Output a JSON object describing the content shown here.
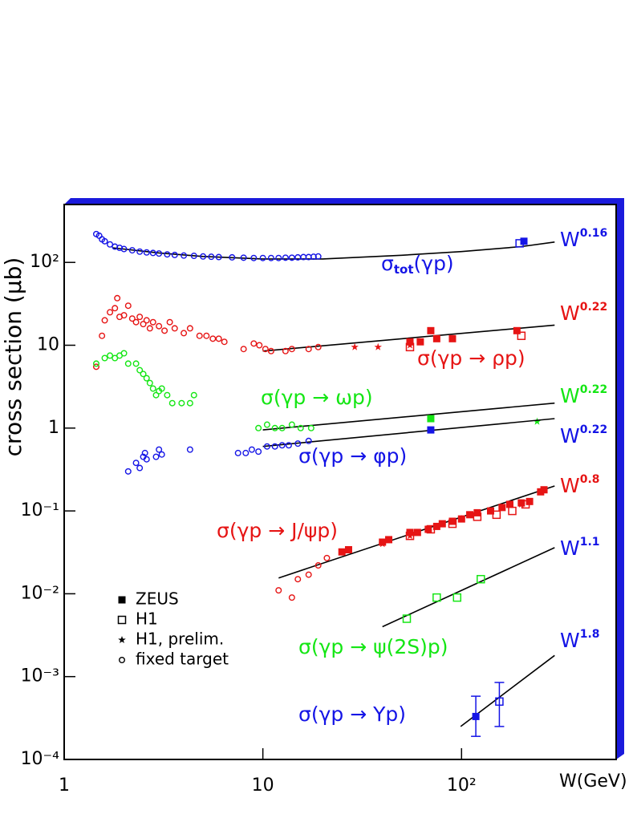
{
  "chart_data": {
    "type": "scatter",
    "x_label": "W(GeV)",
    "y_label": "cross section (μb)",
    "log_x": true,
    "log_y": true,
    "xlim": [
      1,
      600
    ],
    "ylim": [
      0.0001,
      500
    ],
    "xticks": [
      1,
      10,
      {
        "value": 100,
        "label": "10²"
      }
    ],
    "yticks": [
      {
        "value": 0.0001,
        "label": "10⁻⁴"
      },
      {
        "value": 0.001,
        "label": "10⁻³"
      },
      {
        "value": 0.01,
        "label": "10⁻²"
      },
      {
        "value": 0.1,
        "label": "10⁻¹"
      },
      1,
      10,
      {
        "value": 100,
        "label": "10²"
      }
    ],
    "legend": {
      "position": "lower left",
      "entries": [
        {
          "name": "ZEUS",
          "marker": "filled-square"
        },
        {
          "name": "H1",
          "marker": "open-square"
        },
        {
          "name": "H1, prelim.",
          "marker": "star"
        },
        {
          "name": "fixed target",
          "marker": "circle"
        }
      ]
    },
    "processes": [
      {
        "label": "σ",
        "subscript": "tot",
        "label_suffix": "(γp)",
        "color": "#1414e6",
        "fit_label": "W",
        "fit_exponent": 0.16,
        "fit_color": "#1414e6",
        "fit": {
          "x": [
            1.75,
            3,
            5,
            10,
            20,
            50,
            100,
            200,
            294
          ],
          "values": [
            150,
            130,
            118,
            110,
            110,
            122,
            135,
            155,
            176
          ]
        },
        "series": [
          {
            "marker": "circle",
            "x": [
              1.45,
              1.5,
              1.55,
              1.6,
              1.7,
              1.8,
              1.9,
              2.0,
              2.2,
              2.4,
              2.6,
              2.8,
              3.0,
              3.3,
              3.6,
              4,
              4.5,
              5,
              5.5,
              6,
              7,
              8,
              9,
              10,
              11,
              12,
              13,
              14,
              15,
              16,
              17,
              18,
              19
            ],
            "values": [
              220,
              210,
              190,
              180,
              165,
              155,
              150,
              145,
              140,
              135,
              132,
              130,
              128,
              125,
              123,
              121,
              120,
              118,
              117,
              116,
              115,
              114,
              113,
              113,
              113,
              113,
              114,
              114,
              115,
              116,
              116,
              117,
              118
            ]
          },
          {
            "marker": "filled-square",
            "x": [
              206
            ],
            "values": [
              180
            ]
          },
          {
            "marker": "open-square",
            "x": [
              196
            ],
            "values": [
              170
            ]
          }
        ]
      },
      {
        "label": "σ(γp → ρp)",
        "color": "#e61414",
        "fit_label": "W",
        "fit_exponent": 0.22,
        "fit_color": "#e61414",
        "fit": {
          "x": [
            10,
            294
          ],
          "values": [
            8.5,
            17.5
          ]
        },
        "series": [
          {
            "marker": "circle",
            "x": [
              1.45,
              1.55,
              1.6,
              1.7,
              1.8,
              1.85,
              1.9,
              2.0,
              2.1,
              2.2,
              2.3,
              2.4,
              2.5,
              2.6,
              2.7,
              2.8,
              3.0,
              3.2,
              3.4,
              3.6,
              4.0,
              4.3,
              4.8,
              5.2,
              5.6,
              6.0,
              6.4,
              8.0,
              9.0,
              9.6,
              10.3,
              11,
              13,
              14,
              17,
              19
            ],
            "values": [
              5.5,
              13,
              20,
              25,
              28,
              37,
              22,
              23,
              30,
              21,
              19,
              22,
              18,
              20,
              16,
              19,
              17,
              15,
              19,
              16,
              14,
              16,
              13,
              13,
              12,
              12,
              11,
              9,
              10.5,
              10,
              9,
              8.5,
              8.5,
              9,
              9,
              9.5
            ]
          },
          {
            "marker": "star",
            "x": [
              29,
              38,
              55
            ],
            "values": [
              9.5,
              9.5,
              10
            ]
          },
          {
            "marker": "filled-square",
            "x": [
              55,
              62,
              70,
              75,
              90,
              190
            ],
            "values": [
              11,
              11,
              15,
              12,
              12,
              15
            ]
          },
          {
            "marker": "open-square",
            "x": [
              55,
              200
            ],
            "values": [
              9.5,
              13
            ]
          }
        ]
      },
      {
        "label": "σ(γp → ωp)",
        "color": "#14e614",
        "fit_label": "W",
        "fit_exponent": 0.22,
        "fit_color": "#14e614",
        "fit": {
          "x": [
            10,
            294
          ],
          "values": [
            0.95,
            2.0
          ]
        },
        "series": [
          {
            "marker": "circle",
            "x": [
              1.45,
              1.6,
              1.7,
              1.8,
              1.9,
              2.0,
              2.1,
              2.3,
              2.4,
              2.5,
              2.6,
              2.7,
              2.8,
              2.9,
              3.0,
              3.1,
              3.3,
              3.5,
              3.9,
              4.3,
              4.5,
              9.5,
              10.5,
              11.5,
              12.5,
              14,
              15.5,
              17.5
            ],
            "values": [
              6,
              7,
              7.5,
              7,
              7.5,
              8,
              6,
              6,
              5,
              4.5,
              4,
              3.5,
              3,
              2.5,
              2.8,
              3,
              2.5,
              2,
              2,
              2,
              2.5,
              1.0,
              1.1,
              1.0,
              1.0,
              1.1,
              1.0,
              1.0
            ]
          },
          {
            "marker": "filled-square",
            "x": [
              70
            ],
            "values": [
              1.3
            ]
          },
          {
            "marker": "star",
            "x": [
              240
            ],
            "values": [
              1.2
            ]
          }
        ]
      },
      {
        "label": "σ(γp → φp)",
        "color": "#1414e6",
        "fit_label": "W",
        "fit_exponent": 0.22,
        "fit_color": "#1414e6",
        "fit": {
          "x": [
            10,
            294
          ],
          "values": [
            0.6,
            1.3
          ]
        },
        "series": [
          {
            "marker": "circle",
            "x": [
              2.1,
              2.3,
              2.4,
              2.5,
              2.55,
              2.6,
              2.9,
              3.0,
              3.1,
              4.3,
              7.5,
              8.2,
              8.8,
              9.5,
              10.5,
              11.5,
              12.5,
              13.5,
              15,
              17
            ],
            "values": [
              0.3,
              0.38,
              0.33,
              0.45,
              0.5,
              0.42,
              0.45,
              0.55,
              0.48,
              0.55,
              0.5,
              0.5,
              0.55,
              0.52,
              0.6,
              0.6,
              0.62,
              0.62,
              0.65,
              0.7
            ]
          },
          {
            "marker": "filled-square",
            "x": [
              70
            ],
            "values": [
              0.95
            ]
          }
        ]
      },
      {
        "label": "σ(γp → J/ψp)",
        "color": "#e61414",
        "fit_label": "W",
        "fit_exponent": 0.8,
        "fit_color": "#e61414",
        "fit": {
          "x": [
            12,
            294
          ],
          "values": [
            0.0155,
            0.2
          ]
        },
        "series": [
          {
            "marker": "circle",
            "x": [
              12,
              14,
              15,
              17,
              19,
              21
            ],
            "values": [
              0.011,
              0.009,
              0.015,
              0.017,
              0.022,
              0.027
            ]
          },
          {
            "marker": "filled-square",
            "x": [
              25,
              27,
              40,
              43,
              55,
              60,
              68,
              75,
              80,
              90,
              100,
              110,
              120,
              140,
              160,
              175,
              200,
              220,
              250,
              260
            ],
            "values": [
              0.032,
              0.034,
              0.042,
              0.045,
              0.055,
              0.055,
              0.06,
              0.065,
              0.07,
              0.075,
              0.08,
              0.09,
              0.095,
              0.1,
              0.11,
              0.12,
              0.125,
              0.13,
              0.17,
              0.18
            ]
          },
          {
            "marker": "open-square",
            "x": [
              55,
              70,
              90,
              120,
              150,
              180,
              210
            ],
            "values": [
              0.05,
              0.06,
              0.07,
              0.085,
              0.09,
              0.1,
              0.12
            ]
          },
          {
            "marker": "star",
            "x": [
              40,
              55,
              100,
              200
            ],
            "values": [
              0.04,
              0.05,
              0.08,
              0.12
            ]
          }
        ]
      },
      {
        "label": "σ(γp → ψ(2S)p)",
        "color": "#14e614",
        "fit_label": "W",
        "fit_exponent": 1.1,
        "fit_color": "#1414e6",
        "fit": {
          "x": [
            40,
            294
          ],
          "values": [
            0.004,
            0.036
          ]
        },
        "series": [
          {
            "marker": "open-square",
            "x": [
              53,
              75,
              95,
              125
            ],
            "values": [
              0.005,
              0.009,
              0.009,
              0.015
            ]
          }
        ]
      },
      {
        "label": "σ(γp → Υp)",
        "color": "#1414e6",
        "fit_label": "W",
        "fit_exponent": 1.8,
        "fit_color": "#1414e6",
        "fit": {
          "x": [
            99,
            294
          ],
          "values": [
            0.00025,
            0.0018
          ]
        },
        "series": [
          {
            "marker": "filled-square",
            "x": [
              118
            ],
            "values": [
              0.00033
            ],
            "err_minus": [
              0.00014
            ],
            "err_plus": [
              0.00025
            ]
          },
          {
            "marker": "open-square",
            "x": [
              155
            ],
            "values": [
              0.0005
            ],
            "err_minus": [
              0.00025
            ],
            "err_plus": [
              0.00035
            ]
          }
        ]
      }
    ]
  }
}
